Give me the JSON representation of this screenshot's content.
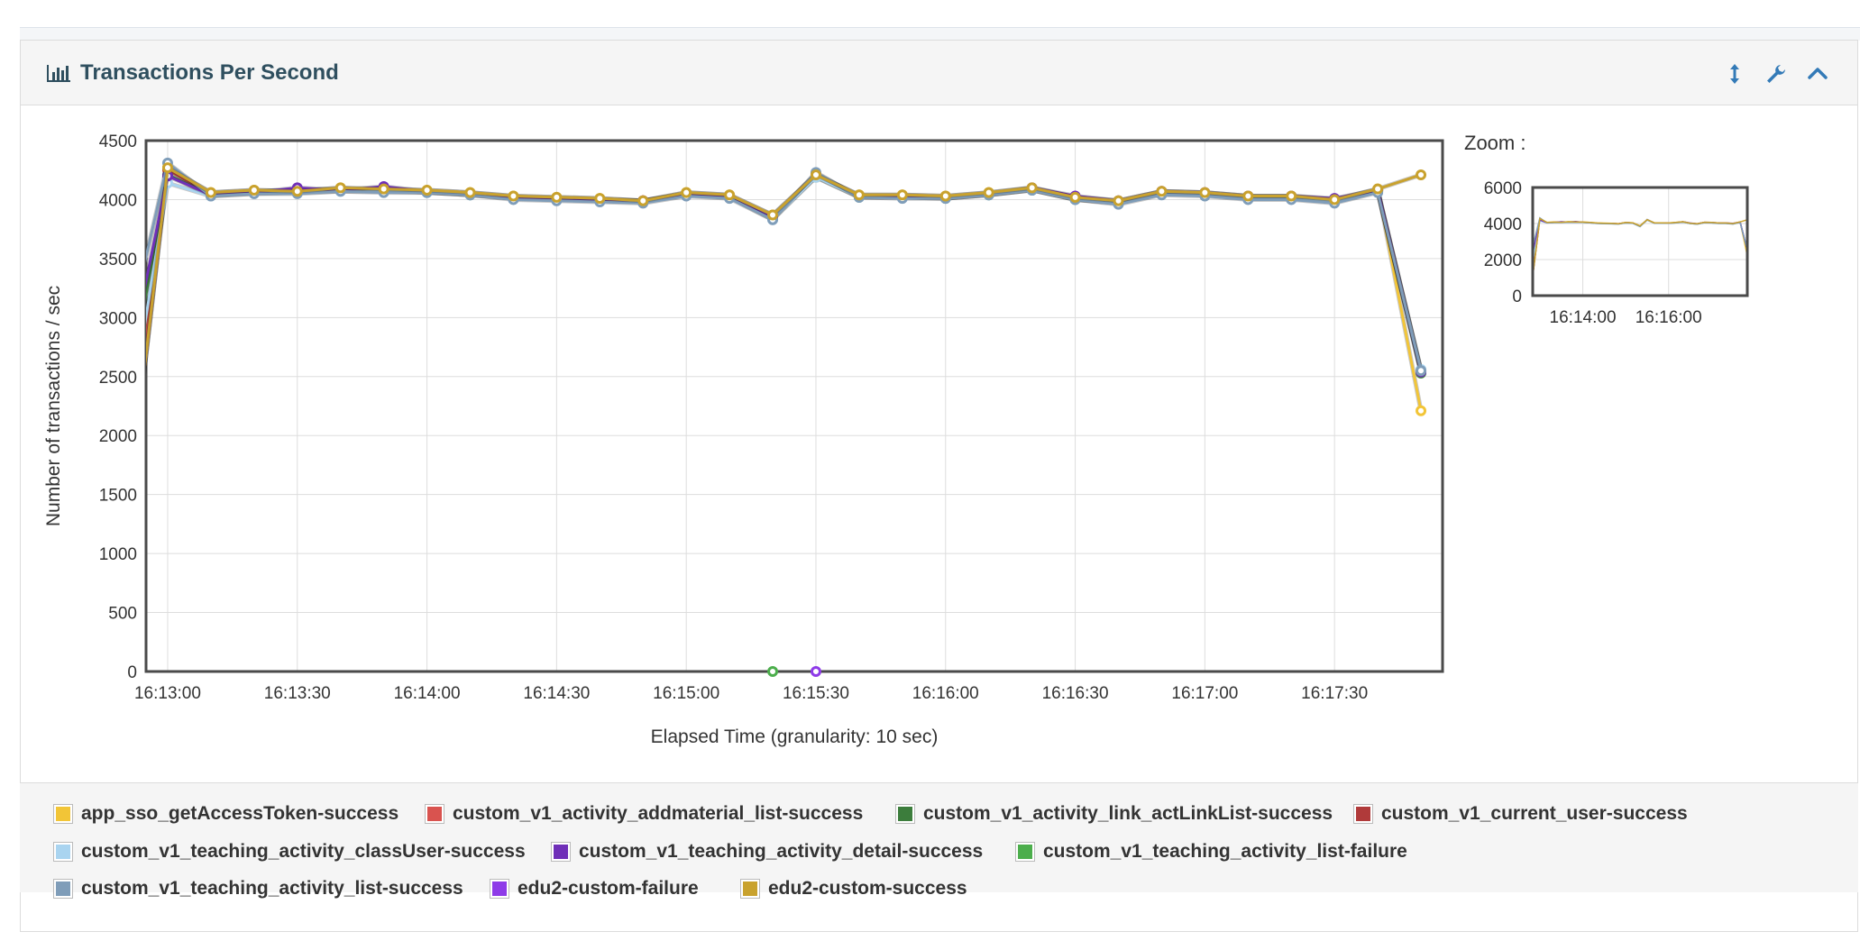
{
  "panel": {
    "title": "Transactions Per Second"
  },
  "icons": {
    "title": "bar-chart-icon",
    "resize": "resize-vertical-icon",
    "settings": "wrench-icon",
    "collapse": "chevron-up-icon"
  },
  "zoom": {
    "label": "Zoom :"
  },
  "chart_data": {
    "type": "line",
    "xlabel": "Elapsed Time (granularity: 10 sec)",
    "ylabel": "Number of transactions / sec",
    "ylim": [
      0,
      4500
    ],
    "yticks": [
      0,
      500,
      1000,
      1500,
      2000,
      2500,
      3000,
      3500,
      4000,
      4500
    ],
    "xlim": [
      "16:12:55",
      "16:17:55"
    ],
    "xtick_labels": [
      "16:13:00",
      "16:13:30",
      "16:14:00",
      "16:14:30",
      "16:15:00",
      "16:15:30",
      "16:16:00",
      "16:16:30",
      "16:17:00",
      "16:17:30"
    ],
    "x": [
      "16:12:50",
      "16:13:00",
      "16:13:10",
      "16:13:20",
      "16:13:30",
      "16:13:40",
      "16:13:50",
      "16:14:00",
      "16:14:10",
      "16:14:20",
      "16:14:30",
      "16:14:40",
      "16:14:50",
      "16:15:00",
      "16:15:10",
      "16:15:20",
      "16:15:30",
      "16:15:40",
      "16:15:50",
      "16:16:00",
      "16:16:10",
      "16:16:20",
      "16:16:30",
      "16:16:40",
      "16:16:50",
      "16:17:00",
      "16:17:10",
      "16:17:20",
      "16:17:30",
      "16:17:40",
      "16:17:50"
    ],
    "grid": true,
    "legend_position": "bottom",
    "series": [
      {
        "name": "app_sso_getAccessToken-success",
        "color": "#f2c537",
        "values": [
          1100,
          4270,
          4060,
          4080,
          4070,
          4100,
          4080,
          4080,
          4060,
          4030,
          4020,
          4010,
          3990,
          4060,
          4040,
          3870,
          4210,
          4040,
          4040,
          4030,
          4060,
          4100,
          4020,
          3990,
          4070,
          4060,
          4030,
          4030,
          4000,
          4090,
          2210
        ]
      },
      {
        "name": "custom_v1_activity_addmaterial_list-success",
        "color": "#d9534f",
        "values": [
          1500,
          4250,
          4050,
          4070,
          4080,
          4090,
          4080,
          4070,
          4050,
          4020,
          4010,
          4000,
          3990,
          4050,
          4030,
          3850,
          4200,
          4030,
          4030,
          4020,
          4050,
          4090,
          4010,
          3980,
          4060,
          4050,
          4020,
          4020,
          3990,
          4080,
          2540
        ]
      },
      {
        "name": "custom_v1_activity_link_actLinkList-success",
        "color": "#3c7d3c",
        "values": [
          2180,
          4210,
          4040,
          4060,
          4070,
          4080,
          4090,
          4060,
          4040,
          4010,
          4000,
          3990,
          3980,
          4040,
          4020,
          3840,
          4190,
          4020,
          4020,
          4010,
          4040,
          4080,
          4000,
          3970,
          4050,
          4040,
          4010,
          4010,
          3980,
          4070,
          2530
        ]
      },
      {
        "name": "custom_v1_current_user-success",
        "color": "#b03a3a",
        "values": [
          1100,
          4260,
          4050,
          4070,
          4060,
          4090,
          4070,
          4070,
          4050,
          4020,
          4010,
          4000,
          3990,
          4050,
          4030,
          3860,
          4200,
          4030,
          4030,
          4020,
          4050,
          4090,
          4010,
          3980,
          4060,
          4050,
          4020,
          4020,
          3990,
          4080,
          2550
        ]
      },
      {
        "name": "custom_v1_teaching_activity_classUser-success",
        "color": "#a9d4f0",
        "values": [
          1880,
          4140,
          4030,
          4050,
          4060,
          4070,
          4070,
          4060,
          4040,
          4010,
          4000,
          3990,
          3980,
          4040,
          4020,
          3830,
          4190,
          4020,
          4020,
          4010,
          4040,
          4080,
          4000,
          3970,
          4050,
          4040,
          4010,
          4010,
          3980,
          4070,
          2560
        ]
      },
      {
        "name": "custom_v1_teaching_activity_detail-success",
        "color": "#6f2fb8",
        "values": [
          2420,
          4200,
          4040,
          4060,
          4100,
          4080,
          4110,
          4070,
          4050,
          4020,
          4010,
          4000,
          3990,
          4050,
          4030,
          3850,
          4220,
          4030,
          4030,
          4020,
          4050,
          4100,
          4030,
          3990,
          4070,
          4060,
          4030,
          4030,
          4010,
          4080,
          2540
        ]
      },
      {
        "name": "custom_v1_teaching_activity_list-failure",
        "color": "#4cae4c",
        "values": [
          null,
          null,
          null,
          null,
          null,
          null,
          null,
          null,
          null,
          null,
          null,
          null,
          null,
          null,
          null,
          0,
          null,
          null,
          null,
          null,
          null,
          null,
          null,
          null,
          null,
          null,
          null,
          null,
          null,
          null,
          null
        ]
      },
      {
        "name": "custom_v1_teaching_activity_list-success",
        "color": "#7f9db9",
        "values": [
          2720,
          4310,
          4030,
          4050,
          4050,
          4070,
          4060,
          4060,
          4040,
          4000,
          3990,
          3980,
          3970,
          4030,
          4010,
          3830,
          4230,
          4020,
          4010,
          4010,
          4040,
          4080,
          4000,
          3960,
          4040,
          4030,
          4000,
          4000,
          3970,
          4060,
          2550
        ]
      },
      {
        "name": "edu2-custom-failure",
        "color": "#8e3be8",
        "values": [
          null,
          null,
          null,
          null,
          null,
          null,
          null,
          null,
          null,
          null,
          null,
          null,
          null,
          null,
          null,
          null,
          0,
          null,
          null,
          null,
          null,
          null,
          null,
          null,
          null,
          null,
          null,
          null,
          null,
          null,
          null
        ]
      },
      {
        "name": "edu2-custom-success",
        "color": "#c9a22e",
        "values": [
          1100,
          4270,
          4060,
          4080,
          4070,
          4100,
          4090,
          4080,
          4060,
          4030,
          4020,
          4010,
          3990,
          4060,
          4040,
          3870,
          4210,
          4040,
          4040,
          4030,
          4060,
          4100,
          4020,
          3990,
          4070,
          4060,
          4030,
          4030,
          4000,
          4090,
          4210
        ]
      }
    ]
  },
  "overview": {
    "ylim": [
      0,
      6000
    ],
    "yticks": [
      0,
      2000,
      4000,
      6000
    ],
    "xtick_labels": [
      "16:14:00",
      "16:16:00"
    ]
  }
}
